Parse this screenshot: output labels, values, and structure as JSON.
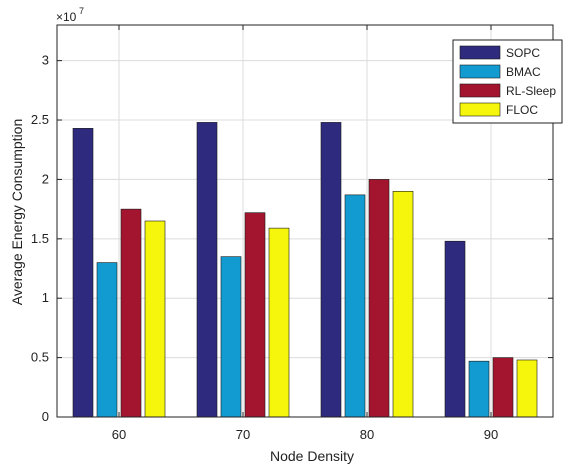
{
  "chart_data": {
    "type": "bar",
    "xlabel": "Node Density",
    "ylabel": "Average Energy Consumption",
    "y_exponent_base": "×10",
    "y_exponent_power": "7",
    "categories": [
      "60",
      "70",
      "80",
      "90"
    ],
    "ylim": [
      0,
      3.3
    ],
    "yticks": [
      0,
      0.5,
      1,
      1.5,
      2,
      2.5,
      3
    ],
    "ytick_labels": [
      "0",
      "0.5",
      "1",
      "1.5",
      "2",
      "2.5",
      "3"
    ],
    "grid": true,
    "legend_position": "top-right",
    "series": [
      {
        "name": "SOPC",
        "color": "#2e2a7e",
        "values": [
          2.43,
          2.48,
          2.48,
          1.48
        ]
      },
      {
        "name": "BMAC",
        "color": "#129bd0",
        "values": [
          1.3,
          1.35,
          1.87,
          0.47
        ]
      },
      {
        "name": "RL-Sleep",
        "color": "#a3142e",
        "values": [
          1.75,
          1.72,
          2.0,
          0.5
        ]
      },
      {
        "name": "FLOC",
        "color": "#f6f60c",
        "values": [
          1.65,
          1.59,
          1.9,
          0.48
        ]
      }
    ]
  }
}
